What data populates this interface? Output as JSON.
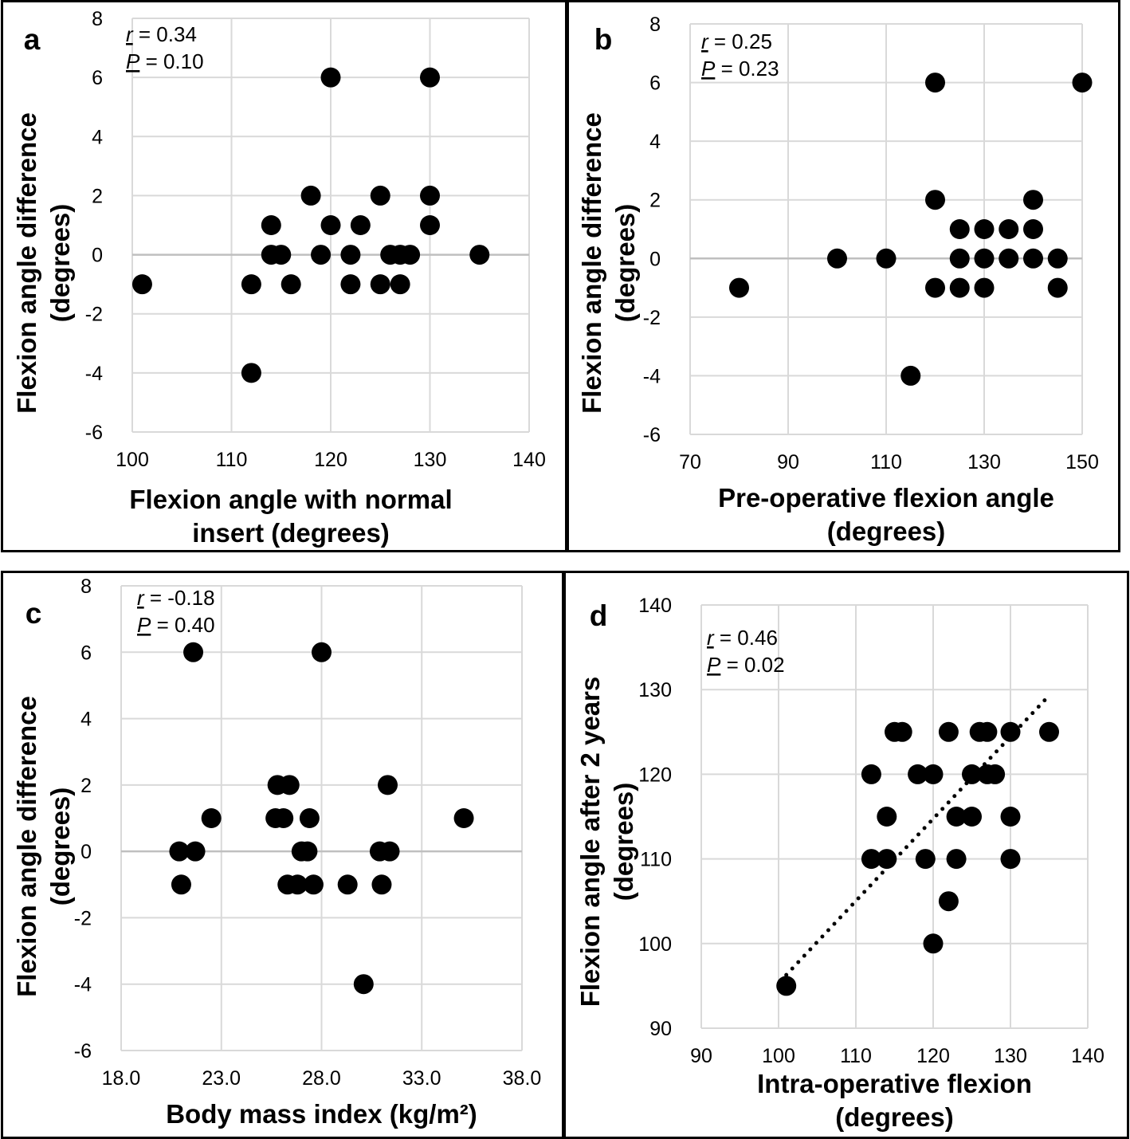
{
  "chart_data": [
    {
      "type": "scatter",
      "panel_label": "a",
      "xlabel": [
        "Flexion angle with normal",
        "insert (degrees)"
      ],
      "ylabel": [
        "Flexion angle difference",
        "(degrees)"
      ],
      "xlim": [
        100,
        140
      ],
      "ylim": [
        -6,
        8
      ],
      "xticks": [
        100,
        110,
        120,
        130,
        140
      ],
      "xtick_labels": [
        "100",
        "110",
        "120",
        "130",
        "140"
      ],
      "yticks": [
        -6,
        -4,
        -2,
        0,
        2,
        4,
        6,
        8
      ],
      "ytick_labels": [
        "-6",
        "-4",
        "-2",
        "0",
        "2",
        "4",
        "6",
        "8"
      ],
      "grid": true,
      "stats": {
        "r_label": "r",
        "r_text": " = 0.34",
        "p_label": "P",
        "p_text": " = 0.10"
      },
      "trendline": null,
      "points": [
        [
          101,
          -1
        ],
        [
          112,
          -1
        ],
        [
          112,
          -4
        ],
        [
          114,
          1
        ],
        [
          114,
          0
        ],
        [
          115,
          0
        ],
        [
          116,
          -1
        ],
        [
          118,
          2
        ],
        [
          119,
          0
        ],
        [
          120,
          6
        ],
        [
          120,
          1
        ],
        [
          122,
          0
        ],
        [
          122,
          -1
        ],
        [
          123,
          1
        ],
        [
          125,
          2
        ],
        [
          125,
          -1
        ],
        [
          126,
          0
        ],
        [
          127,
          0
        ],
        [
          127,
          -1
        ],
        [
          128,
          0
        ],
        [
          130,
          6
        ],
        [
          130,
          2
        ],
        [
          130,
          1
        ],
        [
          135,
          0
        ]
      ]
    },
    {
      "type": "scatter",
      "panel_label": "b",
      "xlabel": [
        "Pre-operative flexion angle",
        "(degrees)"
      ],
      "ylabel": [
        "Flexion angle difference",
        "(degrees)"
      ],
      "xlim": [
        70,
        150
      ],
      "ylim": [
        -6,
        8
      ],
      "xticks": [
        70,
        90,
        110,
        130,
        150
      ],
      "xtick_labels": [
        "70",
        "90",
        "110",
        "130",
        "150"
      ],
      "yticks": [
        -6,
        -4,
        -2,
        0,
        2,
        4,
        6,
        8
      ],
      "ytick_labels": [
        "-6",
        "-4",
        "-2",
        "0",
        "2",
        "4",
        "6",
        "8"
      ],
      "grid": true,
      "stats": {
        "r_label": "r",
        "r_text": " = 0.25",
        "p_label": "P",
        "p_text": " = 0.23"
      },
      "trendline": null,
      "points": [
        [
          80,
          -1
        ],
        [
          100,
          0
        ],
        [
          110,
          0
        ],
        [
          115,
          -4
        ],
        [
          120,
          6
        ],
        [
          120,
          2
        ],
        [
          120,
          -1
        ],
        [
          125,
          1
        ],
        [
          125,
          0
        ],
        [
          125,
          -1
        ],
        [
          130,
          1
        ],
        [
          130,
          0
        ],
        [
          130,
          -1
        ],
        [
          135,
          1
        ],
        [
          135,
          0
        ],
        [
          140,
          2
        ],
        [
          140,
          1
        ],
        [
          140,
          0
        ],
        [
          145,
          0
        ],
        [
          145,
          -1
        ],
        [
          150,
          6
        ]
      ]
    },
    {
      "type": "scatter",
      "panel_label": "c",
      "xlabel": [
        "Body mass index (kg/m²)"
      ],
      "ylabel": [
        "Flexion angle difference",
        "(degrees)"
      ],
      "xlim": [
        18,
        38
      ],
      "ylim": [
        -6,
        8
      ],
      "xticks": [
        18,
        23,
        28,
        33,
        38
      ],
      "xtick_labels": [
        "18.0",
        "23.0",
        "28.0",
        "33.0",
        "38.0"
      ],
      "yticks": [
        -6,
        -4,
        -2,
        0,
        2,
        4,
        6,
        8
      ],
      "ytick_labels": [
        "-6",
        "-4",
        "-2",
        "0",
        "2",
        "4",
        "6",
        "8"
      ],
      "grid": true,
      "stats": {
        "r_label": "r",
        "r_text": " = -0.18",
        "p_label": "P",
        "p_text": " = 0.40"
      },
      "trendline": null,
      "points": [
        [
          21.6,
          6
        ],
        [
          22.5,
          1
        ],
        [
          20.9,
          0
        ],
        [
          21.7,
          0
        ],
        [
          21.0,
          -1
        ],
        [
          25.8,
          2
        ],
        [
          26.4,
          2
        ],
        [
          25.7,
          1
        ],
        [
          26.1,
          1
        ],
        [
          26.3,
          -1
        ],
        [
          26.8,
          -1
        ],
        [
          27.0,
          0
        ],
        [
          27.3,
          0
        ],
        [
          27.4,
          1
        ],
        [
          27.6,
          -1
        ],
        [
          28.0,
          6
        ],
        [
          29.3,
          -1
        ],
        [
          30.1,
          -4
        ],
        [
          30.9,
          0
        ],
        [
          31.4,
          0
        ],
        [
          31.0,
          -1
        ],
        [
          31.3,
          2
        ],
        [
          35.1,
          1
        ]
      ]
    },
    {
      "type": "scatter",
      "panel_label": "d",
      "xlabel": [
        "Intra-operative flexion",
        "(degrees)"
      ],
      "ylabel": [
        "Flexion angle after 2 years",
        "(degrees)"
      ],
      "xlim": [
        90,
        140
      ],
      "ylim": [
        90,
        140
      ],
      "xticks": [
        90,
        100,
        110,
        120,
        130,
        140
      ],
      "xtick_labels": [
        "90",
        "100",
        "110",
        "120",
        "130",
        "140"
      ],
      "yticks": [
        90,
        100,
        110,
        120,
        130,
        140
      ],
      "ytick_labels": [
        "90",
        "100",
        "110",
        "120",
        "130",
        "140"
      ],
      "grid": true,
      "stats": {
        "r_label": "r",
        "r_text": " = 0.46",
        "p_label": "P",
        "p_text": " = 0.02"
      },
      "trendline": {
        "style": "dotted",
        "from": [
          101,
          96.3
        ],
        "to": [
          135,
          129.3
        ]
      },
      "points": [
        [
          101,
          95
        ],
        [
          112,
          120
        ],
        [
          112,
          110
        ],
        [
          114,
          115
        ],
        [
          114,
          110
        ],
        [
          115,
          125
        ],
        [
          116,
          125
        ],
        [
          118,
          120
        ],
        [
          119,
          110
        ],
        [
          120,
          120
        ],
        [
          120,
          100
        ],
        [
          122,
          125
        ],
        [
          122,
          105
        ],
        [
          123,
          115
        ],
        [
          123,
          110
        ],
        [
          125,
          120
        ],
        [
          125,
          115
        ],
        [
          126,
          125
        ],
        [
          127,
          125
        ],
        [
          127,
          120
        ],
        [
          128,
          120
        ],
        [
          130,
          125
        ],
        [
          130,
          115
        ],
        [
          130,
          110
        ],
        [
          135,
          125
        ]
      ]
    }
  ]
}
